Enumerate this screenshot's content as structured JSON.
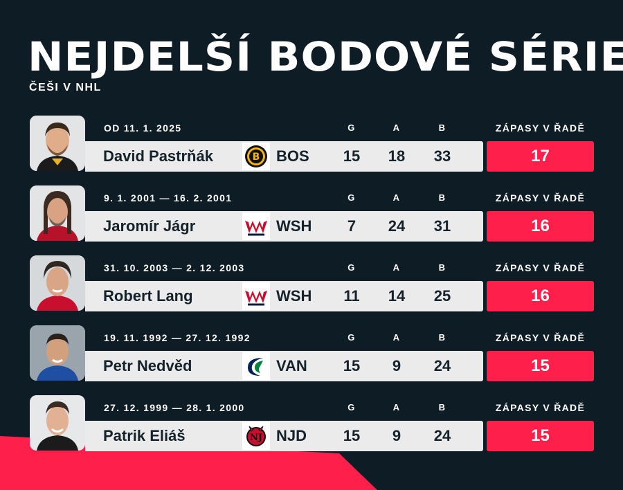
{
  "title": "NEJDELŠÍ BODOVÉ SÉRIE",
  "subtitle": "ČEŠI V NHL",
  "headers": {
    "g": "G",
    "a": "A",
    "b": "B",
    "streak": "ZÁPASY V ŘADĚ"
  },
  "colors": {
    "background": "#0e1c25",
    "accent": "#ff1f4b",
    "bar": "#ebebeb"
  },
  "rows": [
    {
      "period": "OD 11. 1. 2025",
      "name": "David Pastrňák",
      "team": "BOS",
      "logo_icon": "bruins-logo-icon",
      "g": "15",
      "a": "18",
      "b": "33",
      "streak": "17"
    },
    {
      "period": "9. 1. 2001 — 16. 2. 2001",
      "name": "Jaromír Jágr",
      "team": "WSH",
      "logo_icon": "capitals-logo-icon",
      "g": "7",
      "a": "24",
      "b": "31",
      "streak": "16"
    },
    {
      "period": "31. 10. 2003 — 2. 12. 2003",
      "name": "Robert Lang",
      "team": "WSH",
      "logo_icon": "capitals-logo-icon",
      "g": "11",
      "a": "14",
      "b": "25",
      "streak": "16"
    },
    {
      "period": "19. 11. 1992 — 27. 12. 1992",
      "name": "Petr Nedvěd",
      "team": "VAN",
      "logo_icon": "canucks-logo-icon",
      "g": "15",
      "a": "9",
      "b": "24",
      "streak": "15"
    },
    {
      "period": "27. 12. 1999 — 28. 1. 2000",
      "name": "Patrik Eliáš",
      "team": "NJD",
      "logo_icon": "devils-logo-icon",
      "g": "15",
      "a": "9",
      "b": "24",
      "streak": "15"
    }
  ]
}
